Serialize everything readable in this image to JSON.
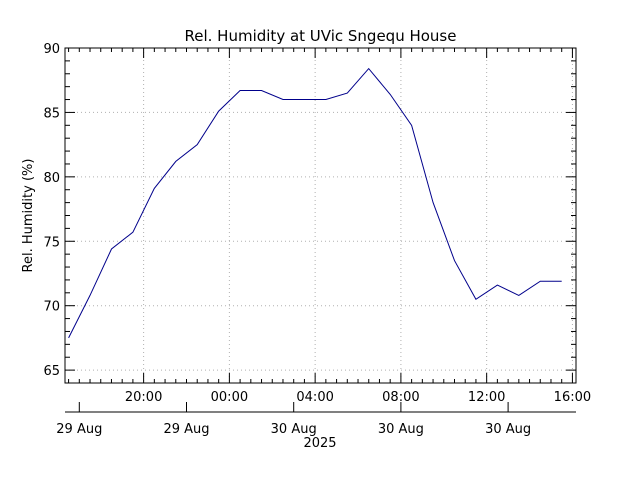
{
  "chart_data": {
    "type": "line",
    "title": "Rel. Humidity at UVic Sngequ House",
    "ylabel": "Rel. Humidity (%)",
    "xlabel": "2025",
    "ylim": [
      64,
      90
    ],
    "y_ticks": [
      65,
      70,
      75,
      80,
      85,
      90
    ],
    "x_range_hours": [
      16.333,
      40.167
    ],
    "x_ticks": [
      {
        "hour": 20,
        "label": "20:00"
      },
      {
        "hour": 24,
        "label": "00:00"
      },
      {
        "hour": 28,
        "label": "04:00"
      },
      {
        "hour": 32,
        "label": "08:00"
      },
      {
        "hour": 36,
        "label": "12:00"
      },
      {
        "hour": 40,
        "label": "16:00"
      }
    ],
    "date_labels": [
      {
        "hour": 17,
        "label": "29 Aug"
      },
      {
        "hour": 22,
        "label": "29 Aug"
      },
      {
        "hour": 27,
        "label": "30 Aug"
      },
      {
        "hour": 32,
        "label": "30 Aug"
      },
      {
        "hour": 37,
        "label": "30 Aug"
      }
    ],
    "grid": true,
    "series": [
      {
        "color": "#00008b",
        "x": [
          16.5,
          17.5,
          18.5,
          19.5,
          20.5,
          21.5,
          22.5,
          23.5,
          24.5,
          25.5,
          26.5,
          27.5,
          28.5,
          29.5,
          30.5,
          31.5,
          32.5,
          33.5,
          34.5,
          35.5,
          36.5,
          37.5,
          38.5,
          39.5
        ],
        "y": [
          67.5,
          70.8,
          74.4,
          75.7,
          79.1,
          81.2,
          82.5,
          85.1,
          86.7,
          86.7,
          86.0,
          86.0,
          86.0,
          86.5,
          88.4,
          86.4,
          84.0,
          78.0,
          73.5,
          70.5,
          71.6,
          70.8,
          71.9,
          71.9
        ]
      }
    ]
  }
}
